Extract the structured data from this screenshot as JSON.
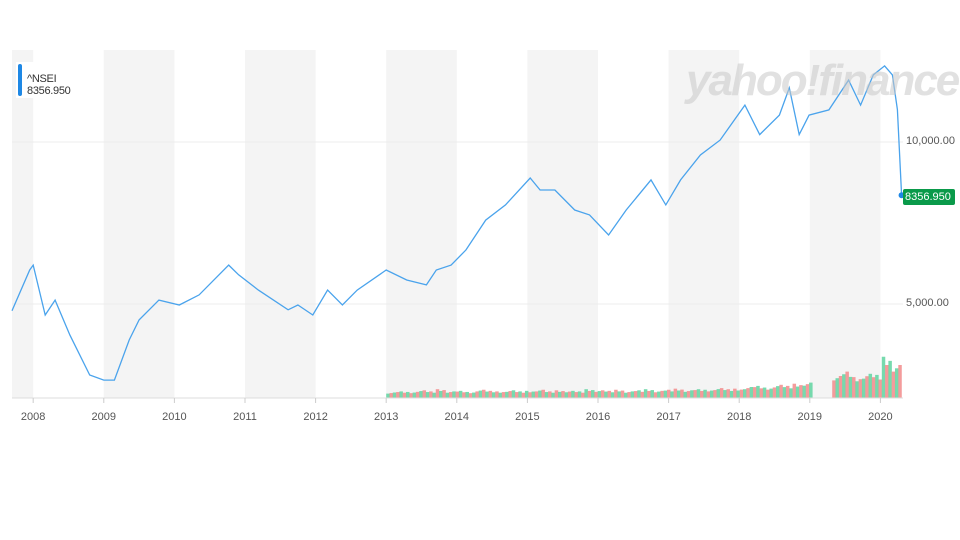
{
  "legend": {
    "symbol": "^NSEI",
    "value": "8356.950",
    "color": "#1e88e5"
  },
  "watermark": "yahoo!finance",
  "chart_data": {
    "type": "line",
    "title": "",
    "series": [
      {
        "name": "^NSEI",
        "color": "#4aa3ec",
        "points": [
          [
            2007.7,
            4790
          ],
          [
            2007.95,
            6050
          ],
          [
            2008.0,
            6200
          ],
          [
            2008.17,
            4660
          ],
          [
            2008.31,
            5120
          ],
          [
            2008.52,
            4040
          ],
          [
            2008.8,
            2810
          ],
          [
            2009.0,
            2650
          ],
          [
            2009.15,
            2650
          ],
          [
            2009.36,
            3890
          ],
          [
            2009.5,
            4510
          ],
          [
            2009.78,
            5120
          ],
          [
            2010.07,
            4970
          ],
          [
            2010.35,
            5280
          ],
          [
            2010.77,
            6200
          ],
          [
            2010.91,
            5900
          ],
          [
            2011.19,
            5430
          ],
          [
            2011.61,
            4820
          ],
          [
            2011.75,
            4970
          ],
          [
            2011.96,
            4660
          ],
          [
            2012.17,
            5430
          ],
          [
            2012.38,
            4970
          ],
          [
            2012.59,
            5430
          ],
          [
            2013.0,
            6050
          ],
          [
            2013.29,
            5740
          ],
          [
            2013.57,
            5590
          ],
          [
            2013.71,
            6050
          ],
          [
            2013.92,
            6200
          ],
          [
            2014.13,
            6670
          ],
          [
            2014.41,
            7590
          ],
          [
            2014.69,
            8060
          ],
          [
            2015.04,
            8890
          ],
          [
            2015.18,
            8520
          ],
          [
            2015.39,
            8520
          ],
          [
            2015.67,
            7900
          ],
          [
            2015.88,
            7750
          ],
          [
            2016.15,
            7130
          ],
          [
            2016.4,
            7900
          ],
          [
            2016.75,
            8830
          ],
          [
            2016.96,
            8060
          ],
          [
            2017.17,
            8830
          ],
          [
            2017.45,
            9600
          ],
          [
            2017.73,
            10060
          ],
          [
            2018.08,
            11140
          ],
          [
            2018.29,
            10230
          ],
          [
            2018.57,
            10830
          ],
          [
            2018.71,
            11670
          ],
          [
            2018.85,
            10230
          ],
          [
            2018.99,
            10830
          ],
          [
            2019.27,
            10990
          ],
          [
            2019.55,
            11910
          ],
          [
            2019.72,
            11140
          ],
          [
            2019.9,
            12070
          ],
          [
            2020.06,
            12350
          ],
          [
            2020.17,
            12070
          ],
          [
            2020.24,
            11000
          ],
          [
            2020.3,
            8356.95
          ]
        ]
      }
    ],
    "volume": {
      "colors": {
        "up": "#5fd3a0",
        "down": "#f28b8b"
      },
      "start": 2013.0,
      "end": 2020.3,
      "values": [
        10,
        12,
        11,
        14,
        12,
        16,
        12,
        13,
        11,
        15,
        13,
        12,
        14,
        12,
        13,
        15,
        12,
        14,
        13,
        12,
        16,
        14,
        13,
        15,
        12,
        14,
        16,
        13,
        15,
        17,
        14,
        16,
        15,
        18,
        16,
        17,
        20,
        22,
        19,
        24,
        22,
        26,
        28,
        0,
        0,
        40,
        48,
        38,
        44,
        42,
        75,
        60
      ]
    },
    "y_ticks": [
      "5,000.00",
      "10,000.00"
    ],
    "y_tick_values": [
      5000,
      10000
    ],
    "x_ticks": [
      "2008",
      "2009",
      "2010",
      "2011",
      "2012",
      "2013",
      "2014",
      "2015",
      "2016",
      "2017",
      "2018",
      "2019",
      "2020"
    ],
    "xlim": [
      2007.7,
      2020.32
    ],
    "ylim": [
      0,
      12840
    ],
    "last_price_label": "8356.950",
    "last_price_color": "#0a9a4a",
    "grid": true
  }
}
